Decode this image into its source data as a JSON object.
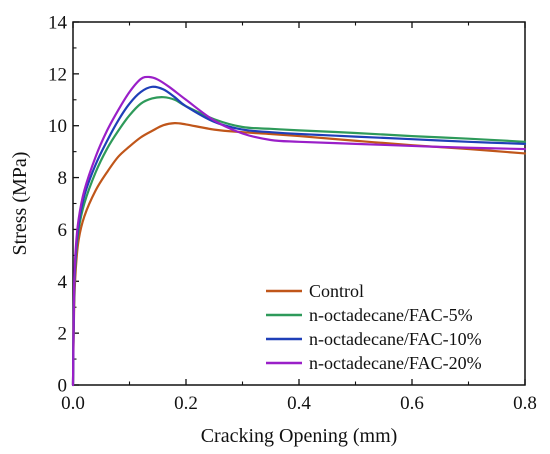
{
  "chart_data": {
    "type": "line",
    "title": "",
    "xlabel": "Cracking Opening (mm)",
    "ylabel": "Stress (MPa)",
    "xlim": [
      0.0,
      0.8
    ],
    "ylim": [
      0,
      14
    ],
    "xticks": [
      0.0,
      0.2,
      0.4,
      0.6,
      0.8
    ],
    "xtick_labels": [
      "0.0",
      "0.2",
      "0.4",
      "0.6",
      "0.8"
    ],
    "yticks": [
      0,
      2,
      4,
      6,
      8,
      10,
      12,
      14
    ],
    "ytick_labels": [
      "0",
      "2",
      "4",
      "6",
      "8",
      "10",
      "12",
      "14"
    ],
    "grid": false,
    "legend": "bottom-right",
    "series": [
      {
        "name": "Control",
        "color": "#c0561a",
        "points": [
          [
            0,
            0
          ],
          [
            0.002,
            3.0
          ],
          [
            0.005,
            4.5
          ],
          [
            0.01,
            5.6
          ],
          [
            0.02,
            6.5
          ],
          [
            0.04,
            7.5
          ],
          [
            0.06,
            8.2
          ],
          [
            0.08,
            8.8
          ],
          [
            0.1,
            9.2
          ],
          [
            0.12,
            9.55
          ],
          [
            0.14,
            9.8
          ],
          [
            0.16,
            10.02
          ],
          [
            0.18,
            10.1
          ],
          [
            0.2,
            10.05
          ],
          [
            0.25,
            9.85
          ],
          [
            0.3,
            9.75
          ],
          [
            0.35,
            9.68
          ],
          [
            0.4,
            9.6
          ],
          [
            0.5,
            9.42
          ],
          [
            0.6,
            9.25
          ],
          [
            0.7,
            9.1
          ],
          [
            0.8,
            8.93
          ]
        ]
      },
      {
        "name": "n-octadecane/FAC-5%",
        "color": "#2e9a5a",
        "points": [
          [
            0,
            0
          ],
          [
            0.002,
            3.4
          ],
          [
            0.005,
            4.9
          ],
          [
            0.01,
            6.0
          ],
          [
            0.02,
            7.0
          ],
          [
            0.04,
            8.2
          ],
          [
            0.06,
            9.1
          ],
          [
            0.08,
            9.8
          ],
          [
            0.1,
            10.4
          ],
          [
            0.12,
            10.85
          ],
          [
            0.14,
            11.05
          ],
          [
            0.16,
            11.1
          ],
          [
            0.18,
            11.0
          ],
          [
            0.2,
            10.75
          ],
          [
            0.25,
            10.25
          ],
          [
            0.3,
            9.95
          ],
          [
            0.35,
            9.88
          ],
          [
            0.4,
            9.82
          ],
          [
            0.5,
            9.72
          ],
          [
            0.6,
            9.6
          ],
          [
            0.7,
            9.5
          ],
          [
            0.8,
            9.38
          ]
        ]
      },
      {
        "name": "n-octadecane/FAC-10%",
        "color": "#1f3fb8",
        "points": [
          [
            0,
            0
          ],
          [
            0.002,
            3.6
          ],
          [
            0.005,
            5.1
          ],
          [
            0.01,
            6.2
          ],
          [
            0.02,
            7.3
          ],
          [
            0.04,
            8.5
          ],
          [
            0.06,
            9.4
          ],
          [
            0.08,
            10.2
          ],
          [
            0.1,
            10.85
          ],
          [
            0.12,
            11.3
          ],
          [
            0.14,
            11.5
          ],
          [
            0.16,
            11.4
          ],
          [
            0.18,
            11.1
          ],
          [
            0.2,
            10.75
          ],
          [
            0.25,
            10.15
          ],
          [
            0.3,
            9.85
          ],
          [
            0.35,
            9.75
          ],
          [
            0.4,
            9.68
          ],
          [
            0.5,
            9.58
          ],
          [
            0.6,
            9.48
          ],
          [
            0.7,
            9.38
          ],
          [
            0.8,
            9.3
          ]
        ]
      },
      {
        "name": "n-octadecane/FAC-20%",
        "color": "#9a1fc8",
        "points": [
          [
            0,
            0
          ],
          [
            0.002,
            3.8
          ],
          [
            0.005,
            5.3
          ],
          [
            0.01,
            6.4
          ],
          [
            0.02,
            7.5
          ],
          [
            0.04,
            8.8
          ],
          [
            0.06,
            9.8
          ],
          [
            0.08,
            10.6
          ],
          [
            0.1,
            11.3
          ],
          [
            0.12,
            11.8
          ],
          [
            0.135,
            11.88
          ],
          [
            0.15,
            11.78
          ],
          [
            0.17,
            11.5
          ],
          [
            0.2,
            11.0
          ],
          [
            0.25,
            10.2
          ],
          [
            0.3,
            9.7
          ],
          [
            0.35,
            9.45
          ],
          [
            0.4,
            9.38
          ],
          [
            0.5,
            9.3
          ],
          [
            0.6,
            9.22
          ],
          [
            0.7,
            9.15
          ],
          [
            0.8,
            9.1
          ]
        ]
      }
    ]
  }
}
